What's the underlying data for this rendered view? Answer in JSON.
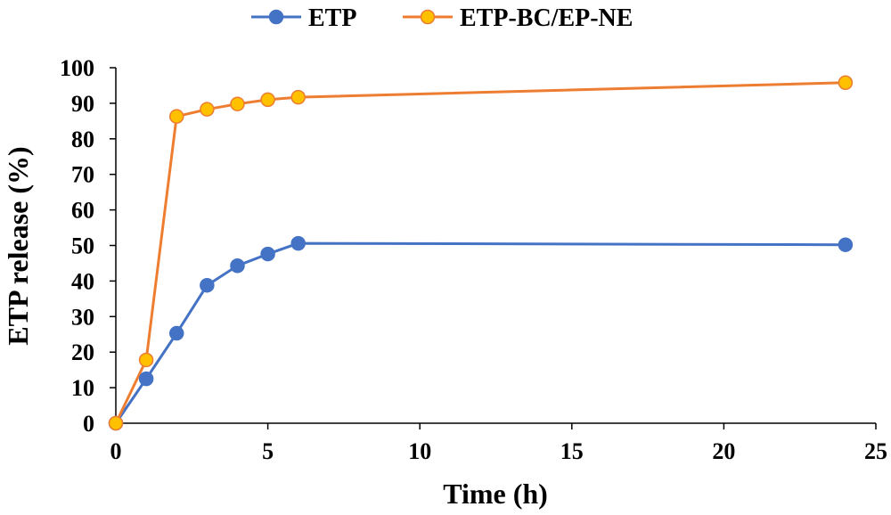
{
  "chart_data": {
    "type": "line",
    "title": "",
    "xlabel": "Time (h)",
    "ylabel": "ETP release (%)",
    "xlim": [
      0,
      25
    ],
    "ylim": [
      0,
      100
    ],
    "xticks": [
      0,
      5,
      10,
      15,
      20,
      25
    ],
    "yticks": [
      0,
      10,
      20,
      30,
      40,
      50,
      60,
      70,
      80,
      90,
      100
    ],
    "grid": false,
    "legend_position": "top-center",
    "series": [
      {
        "name": "ETP",
        "color": "#4472C4",
        "marker_color": "#4472C4",
        "x": [
          0,
          1,
          2,
          3,
          4,
          5,
          6,
          24
        ],
        "y": [
          0,
          12.5,
          25.3,
          38.8,
          44.3,
          47.6,
          50.6,
          50.2
        ]
      },
      {
        "name": "ETP-BC/EP-NE",
        "color": "#ED7D31",
        "marker_color": "#FFC000",
        "x": [
          0,
          1,
          2,
          3,
          4,
          5,
          6,
          24
        ],
        "y": [
          0,
          17.8,
          86.3,
          88.3,
          89.8,
          91.0,
          91.7,
          95.8
        ]
      }
    ]
  }
}
